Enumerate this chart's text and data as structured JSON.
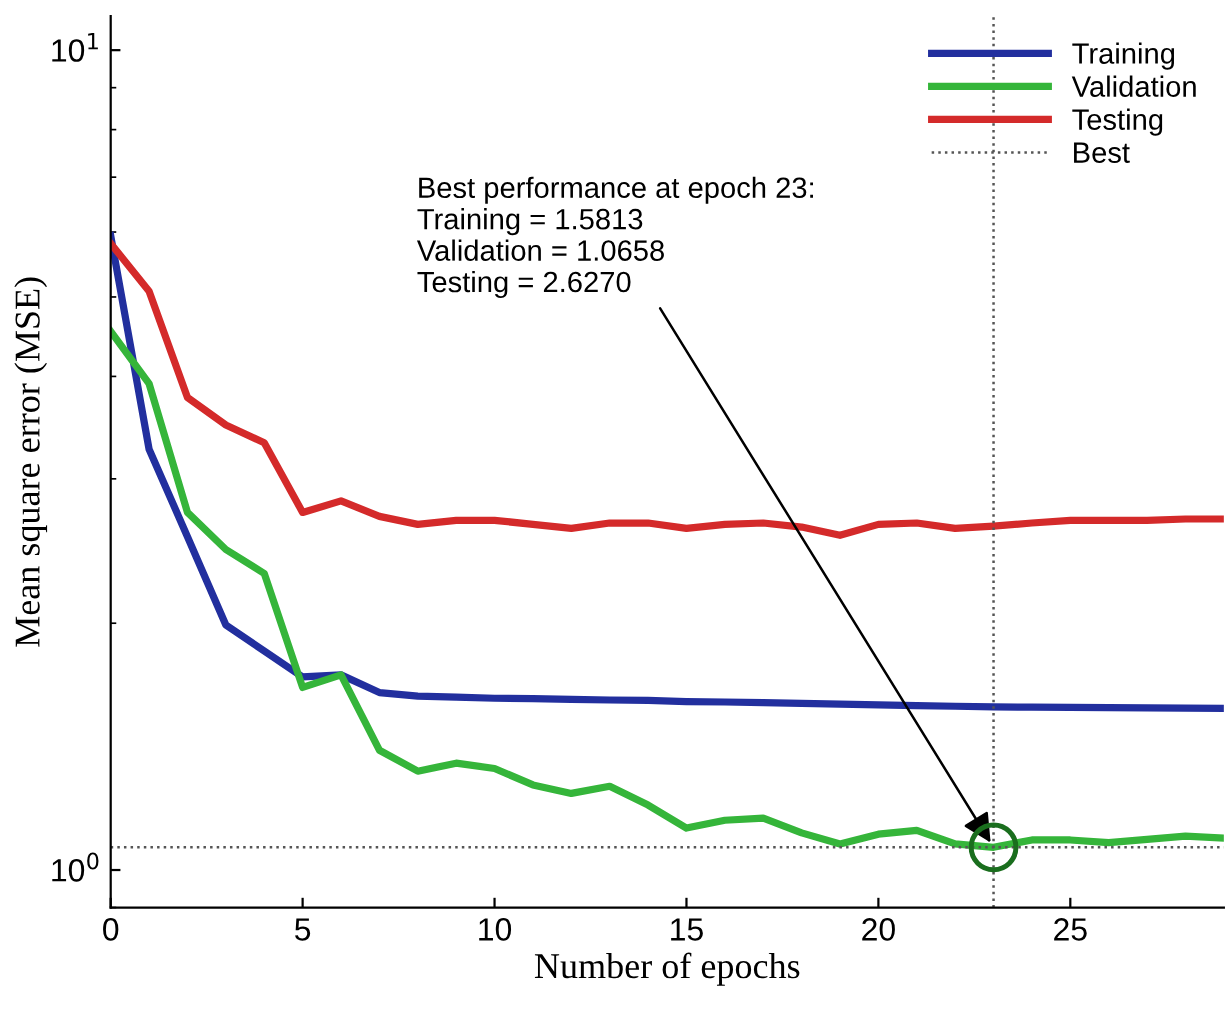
{
  "chart_data": {
    "type": "line",
    "xlabel": "Number of epochs",
    "ylabel": "Mean square error (MSE)",
    "log": "y",
    "xlim": [
      0,
      29
    ],
    "xticks": [
      0,
      5,
      10,
      15,
      20,
      25
    ],
    "ylim": [
      0.9,
      11
    ],
    "yticks": [
      {
        "value": 1,
        "label": "10$^{0}$"
      },
      {
        "value": 10,
        "label": "10$^{1}$"
      }
    ],
    "grid": false,
    "legend": "top right",
    "line_style": "solid",
    "x": [
      0,
      1,
      2,
      3,
      4,
      5,
      6,
      7,
      8,
      9,
      10,
      11,
      12,
      13,
      14,
      15,
      16,
      17,
      18,
      19,
      20,
      21,
      22,
      23,
      24,
      25,
      26,
      27,
      28,
      29
    ],
    "series": [
      {
        "name": "Training",
        "color": "#222f9e",
        "values": [
          5.94,
          3.26,
          2.55,
          1.99,
          1.85,
          1.72,
          1.73,
          1.646,
          1.63,
          1.625,
          1.62,
          1.618,
          1.615,
          1.612,
          1.61,
          1.605,
          1.603,
          1.6,
          1.597,
          1.593,
          1.59,
          1.587,
          1.584,
          1.5813,
          1.58,
          1.579,
          1.578,
          1.577,
          1.576,
          1.575
        ]
      },
      {
        "name": "Validation",
        "color": "#35b53a",
        "values": [
          4.54,
          3.92,
          2.73,
          2.46,
          2.3,
          1.67,
          1.73,
          1.4,
          1.32,
          1.35,
          1.33,
          1.27,
          1.24,
          1.265,
          1.2,
          1.125,
          1.15,
          1.157,
          1.11,
          1.076,
          1.106,
          1.118,
          1.076,
          1.0658,
          1.088,
          1.088,
          1.08,
          1.09,
          1.1,
          1.094
        ]
      },
      {
        "name": "Testing",
        "color": "#d42a2a",
        "values": [
          5.81,
          5.08,
          3.77,
          3.49,
          3.32,
          2.73,
          2.82,
          2.7,
          2.64,
          2.67,
          2.67,
          2.64,
          2.61,
          2.65,
          2.65,
          2.61,
          2.64,
          2.65,
          2.62,
          2.56,
          2.64,
          2.65,
          2.61,
          2.627,
          2.65,
          2.67,
          2.67,
          2.67,
          2.68,
          2.68
        ]
      },
      {
        "type": "scatter",
        "color": "#1a6e1e",
        "marker": "circle",
        "x": [
          23
        ],
        "values": [
          1.0658
        ]
      }
    ],
    "ref_lines": [
      {
        "axis": "x",
        "value": 23,
        "label": "Best",
        "color": "#555555",
        "line_style": "dotted"
      },
      {
        "axis": "y",
        "value": 1.0658,
        "color": "#555555",
        "line_style": "dotted"
      }
    ],
    "annotations": [
      {
        "text": "Best performance at epoch 23:\nTraining = 1.5813\nValidation = 1.0658\nTesting = 2.6270",
        "x": 23,
        "y": 1.0658
      }
    ]
  }
}
